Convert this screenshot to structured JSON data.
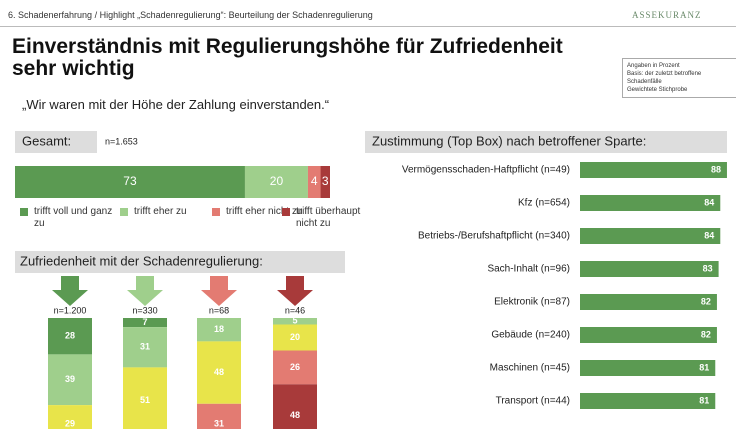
{
  "header": {
    "breadcrumb": "6. Schadenerfahrung / Highlight „Schadenregulierung“: Beurteilung der Schadenregulierung",
    "logo": "ASSEKURANZ",
    "title": "Einverständnis mit Regulierungshöhe für Zufriedenheit sehr wichtig",
    "notes": [
      "Angaben in Prozent",
      "Basis: der zuletzt betroffene Schadenfälle",
      "Gewichtete Stichprobe"
    ]
  },
  "quote": "„Wir waren mit der Höhe der Zahlung einverstanden.“",
  "total_chart": {
    "type": "bar",
    "label": "Gesamt:",
    "n": "n=1.653",
    "series": [
      {
        "name": "trifft voll und ganz zu",
        "color": "#5b9a52",
        "values": [
          73
        ]
      },
      {
        "name": "trifft eher zu",
        "color": "#9fcf8c",
        "values": [
          20
        ]
      },
      {
        "name": "trifft eher nicht zu",
        "color": "#e37b72",
        "values": [
          4
        ]
      },
      {
        "name": "trifft überhaupt nicht zu",
        "color": "#a83a3a",
        "values": [
          3
        ]
      }
    ]
  },
  "satisfaction": {
    "title": "Zufriedenheit mit der Schadenregulierung:",
    "columns": [
      {
        "n": "n=1.200",
        "segments": [
          {
            "value": 28,
            "color": "#5b9a52"
          },
          {
            "value": 39,
            "color": "#9fcf8c"
          },
          {
            "value": 29,
            "color": "#e8e44a"
          }
        ]
      },
      {
        "n": "n=330",
        "segments": [
          {
            "value": 7,
            "color": "#5b9a52"
          },
          {
            "value": 31,
            "color": "#9fcf8c"
          },
          {
            "value": 51,
            "color": "#e8e44a"
          }
        ]
      },
      {
        "n": "n=68",
        "segments": [
          {
            "value": 18,
            "color": "#9fcf8c"
          },
          {
            "value": 48,
            "color": "#e8e44a"
          },
          {
            "value": 31,
            "color": "#e37b72"
          }
        ]
      },
      {
        "n": "n=46",
        "segments": [
          {
            "value": 5,
            "color": "#9fcf8c"
          },
          {
            "value": 20,
            "color": "#e8e44a"
          },
          {
            "value": 26,
            "color": "#e37b72"
          },
          {
            "value": 48,
            "color": "#a83a3a"
          }
        ]
      }
    ]
  },
  "chart_data": {
    "type": "bar",
    "title": "Zustimmung (Top Box) nach betroffener Sparte:",
    "categories": [
      "Vermögensschaden-Haftpflicht (n=49)",
      "Kfz (n=654)",
      "Betriebs-/Berufshaftpflicht (n=340)",
      "Sach-Inhalt (n=96)",
      "Elektronik (n=87)",
      "Gebäude (n=240)",
      "Maschinen (n=45)",
      "Transport (n=44)"
    ],
    "values": [
      88,
      84,
      84,
      83,
      82,
      82,
      81,
      81
    ],
    "color": "#5b9a52"
  }
}
